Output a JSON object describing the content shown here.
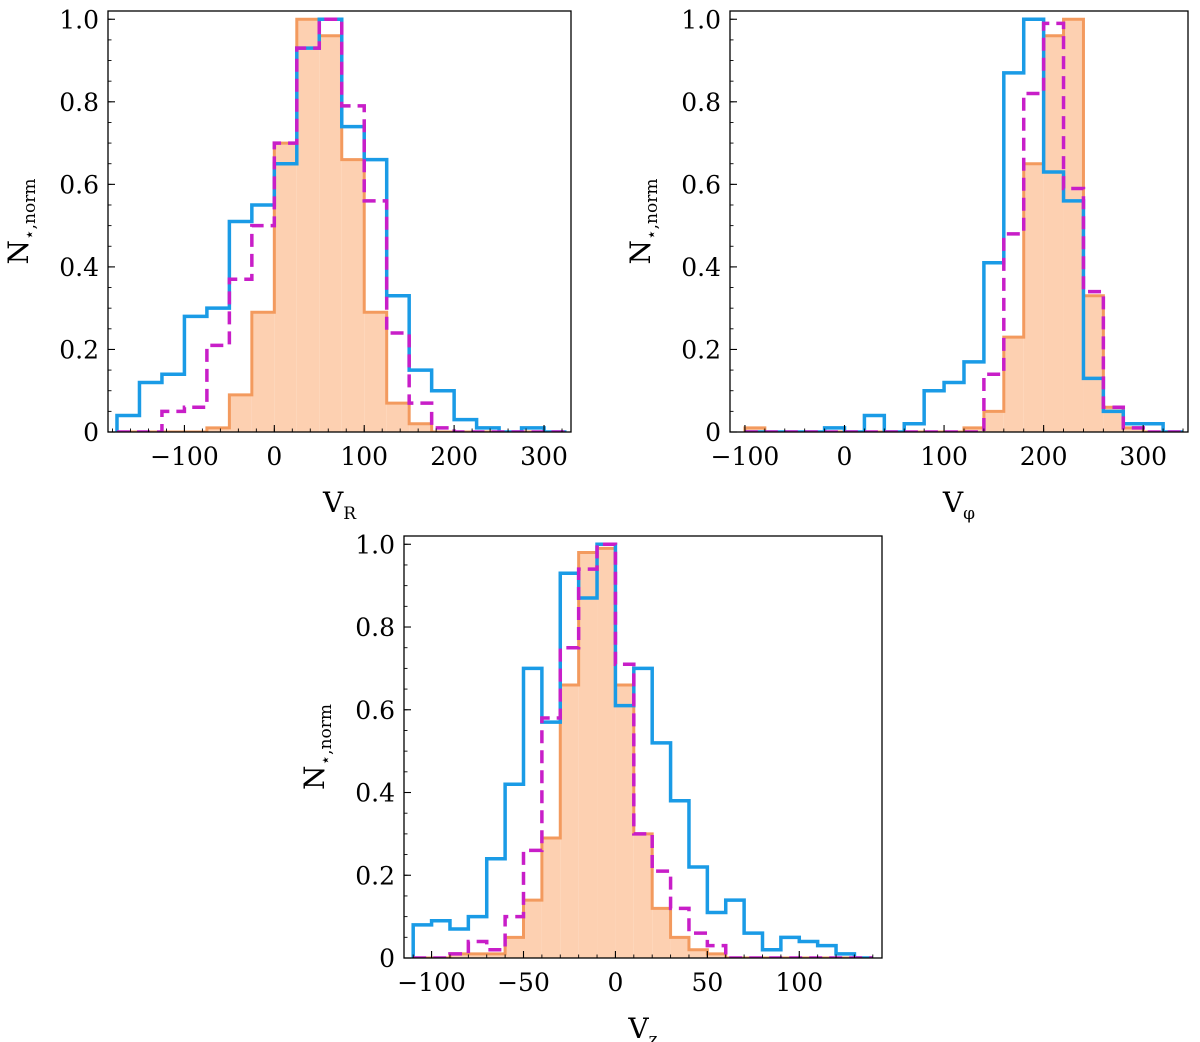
{
  "colors": {
    "orange_fill": "#fdd0b1",
    "orange_edge": "#f39a5e",
    "blue": "#1a9be6",
    "magenta": "#c81ec8"
  },
  "chart_data": [
    {
      "type": "histogram",
      "panel": "VR",
      "xlabel": "V",
      "xlabel_sub": "R",
      "ylabel": "N",
      "ylabel_sub": "⋆,norm",
      "xlim": [
        -185,
        330
      ],
      "ylim": [
        0,
        1.02
      ],
      "xticks": [
        -100,
        0,
        100,
        200,
        300
      ],
      "xtick_labels": [
        "−100",
        "0",
        "100",
        "200",
        "300"
      ],
      "yticks": [
        0,
        0.2,
        0.4,
        0.6,
        0.8,
        1.0
      ],
      "ytick_labels": [
        "0",
        "0.2",
        "0.4",
        "0.6",
        "0.8",
        "1.0"
      ],
      "bins": {
        "start": -175,
        "width": 25,
        "count": 20
      },
      "series": [
        {
          "style": "orange_filled",
          "values": [
            0,
            0,
            0,
            0,
            0.01,
            0.09,
            0.29,
            0.7,
            1.0,
            0.96,
            0.66,
            0.29,
            0.07,
            0.02,
            0,
            0,
            0,
            0,
            0,
            0
          ]
        },
        {
          "style": "blue_step",
          "values": [
            0.04,
            0.12,
            0.14,
            0.28,
            0.3,
            0.51,
            0.55,
            0.65,
            0.93,
            1.0,
            0.74,
            0.66,
            0.33,
            0.15,
            0.1,
            0.03,
            0.01,
            0,
            0.01,
            0
          ]
        },
        {
          "style": "magenta_dashed",
          "values": [
            0,
            0,
            0.05,
            0.06,
            0.21,
            0.37,
            0.5,
            0.7,
            0.93,
            1.0,
            0.79,
            0.56,
            0.24,
            0.07,
            0.01,
            0,
            0,
            0,
            0,
            0
          ]
        }
      ]
    },
    {
      "type": "histogram",
      "panel": "Vphi",
      "xlabel": "V",
      "xlabel_sub": "φ",
      "ylabel": "N",
      "ylabel_sub": "⋆,norm",
      "xlim": [
        -115,
        345
      ],
      "ylim": [
        0,
        1.02
      ],
      "xticks": [
        -100,
        0,
        100,
        200,
        300
      ],
      "xtick_labels": [
        "−100",
        "0",
        "100",
        "200",
        "300"
      ],
      "yticks": [
        0,
        0.2,
        0.4,
        0.6,
        0.8,
        1.0
      ],
      "ytick_labels": [
        "0",
        "0.2",
        "0.4",
        "0.6",
        "0.8",
        "1.0"
      ],
      "bins": {
        "start": -100,
        "width": 20,
        "count": 22
      },
      "series": [
        {
          "style": "orange_filled",
          "values": [
            0.01,
            0,
            0,
            0,
            0,
            0,
            0,
            0,
            0,
            0,
            0,
            0.01,
            0.05,
            0.23,
            0.65,
            0.96,
            1.0,
            0.33,
            0.06,
            0.01,
            0,
            0
          ]
        },
        {
          "style": "blue_step",
          "values": [
            0,
            0,
            0,
            0,
            0.01,
            0,
            0.04,
            0,
            0.02,
            0.1,
            0.12,
            0.17,
            0.41,
            0.87,
            1.0,
            0.63,
            0.56,
            0.13,
            0.05,
            0.02,
            0.02,
            0
          ]
        },
        {
          "style": "magenta_dashed",
          "values": [
            0,
            0,
            0,
            0,
            0,
            0,
            0,
            0,
            0,
            0,
            0,
            0,
            0.14,
            0.48,
            0.82,
            0.99,
            0.59,
            0.34,
            0.06,
            0.01,
            0,
            0
          ]
        }
      ]
    },
    {
      "type": "histogram",
      "panel": "Vz",
      "xlabel": "V",
      "xlabel_sub": "z",
      "ylabel": "N",
      "ylabel_sub": "⋆,norm",
      "xlim": [
        -115,
        145
      ],
      "ylim": [
        0,
        1.02
      ],
      "xticks": [
        -100,
        -50,
        0,
        50,
        100
      ],
      "xtick_labels": [
        "−100",
        "−50",
        "0",
        "50",
        "100"
      ],
      "yticks": [
        0,
        0.2,
        0.4,
        0.6,
        0.8,
        1.0
      ],
      "ytick_labels": [
        "0",
        "0.2",
        "0.4",
        "0.6",
        "0.8",
        "1.0"
      ],
      "bins": {
        "start": -110,
        "width": 10,
        "count": 25
      },
      "series": [
        {
          "style": "orange_filled",
          "values": [
            0,
            0,
            0.01,
            0.01,
            0.01,
            0.05,
            0.14,
            0.29,
            0.66,
            0.98,
            0.99,
            0.66,
            0.3,
            0.12,
            0.05,
            0.02,
            0.01,
            0,
            0,
            0,
            0,
            0,
            0,
            0,
            0
          ]
        },
        {
          "style": "blue_step",
          "values": [
            0.08,
            0.09,
            0.07,
            0.1,
            0.24,
            0.42,
            0.7,
            0.57,
            0.93,
            0.87,
            1.0,
            0.61,
            0.7,
            0.52,
            0.38,
            0.22,
            0.11,
            0.14,
            0.06,
            0.02,
            0.05,
            0.04,
            0.03,
            0.01,
            0
          ]
        },
        {
          "style": "magenta_dashed",
          "values": [
            0,
            0,
            0.01,
            0.04,
            0.02,
            0.1,
            0.26,
            0.58,
            0.75,
            0.94,
            1.0,
            0.71,
            0.3,
            0.21,
            0.12,
            0.06,
            0.03,
            0,
            0,
            0,
            0,
            0,
            0,
            0,
            0
          ]
        }
      ]
    }
  ]
}
